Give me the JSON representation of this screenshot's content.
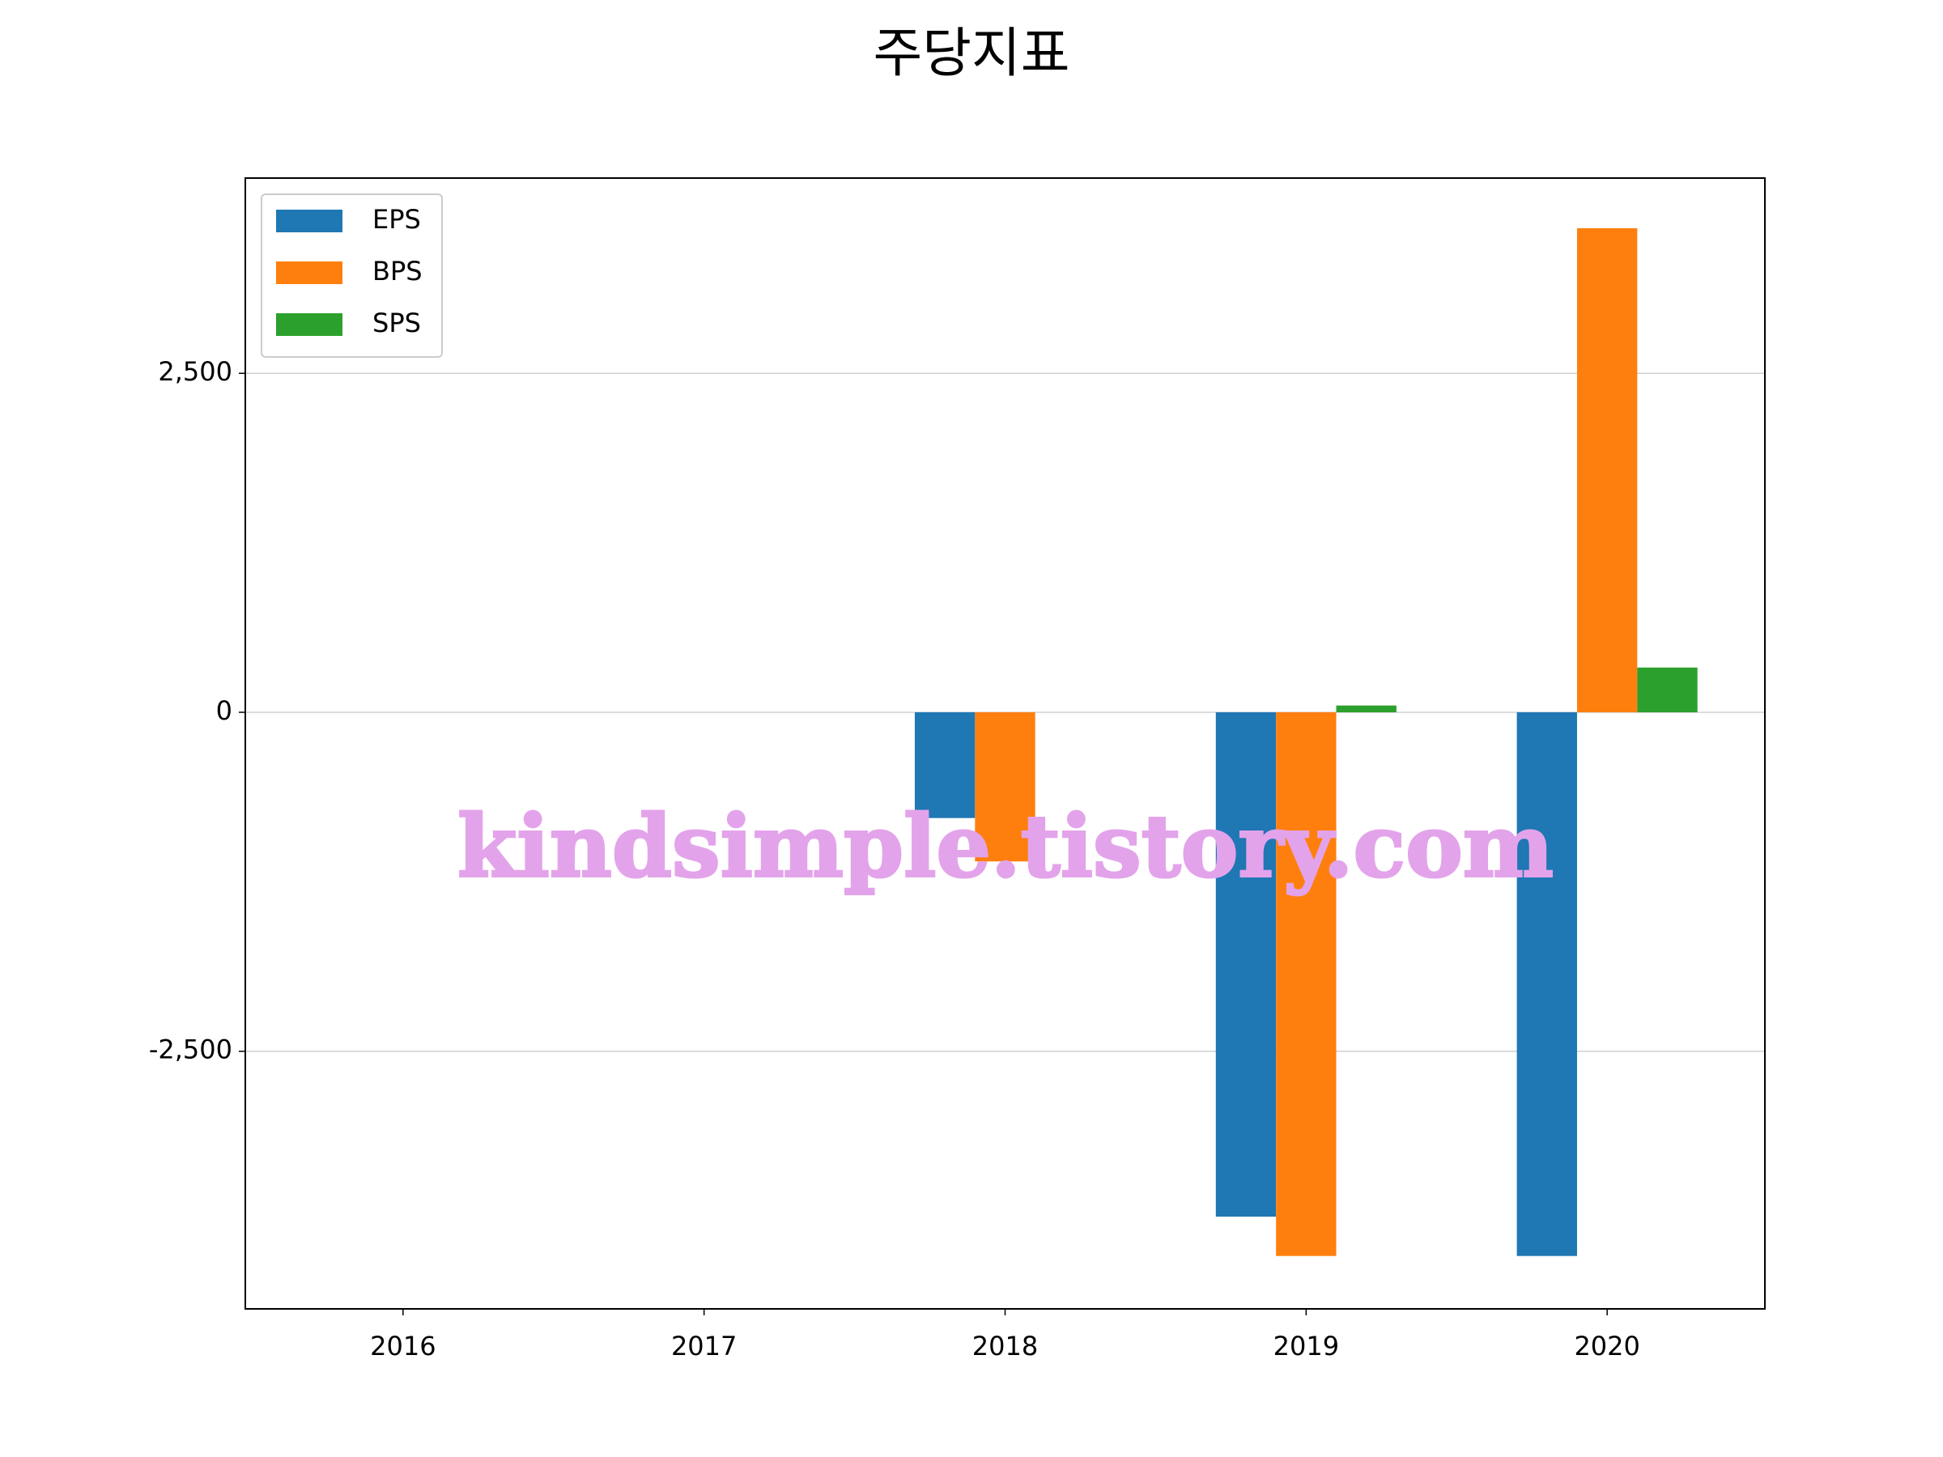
{
  "chart_data": {
    "type": "bar",
    "title": "주당지표",
    "categories": [
      "2016",
      "2017",
      "2018",
      "2019",
      "2020"
    ],
    "series": [
      {
        "name": "EPS",
        "color": "#1f77b4",
        "values": [
          null,
          null,
          -780,
          -3720,
          -4010
        ]
      },
      {
        "name": "BPS",
        "color": "#ff7f0e",
        "values": [
          null,
          null,
          -1100,
          -4010,
          3570
        ]
      },
      {
        "name": "SPS",
        "color": "#2ca02c",
        "values": [
          null,
          null,
          null,
          50,
          330
        ]
      }
    ],
    "ylim": [
      -4400,
      3940
    ],
    "yticks": [
      {
        "value": -2500,
        "label": "-2,500"
      },
      0,
      {
        "value": 2500,
        "label": "2,500"
      }
    ],
    "grid": true,
    "legend": "upper left",
    "watermark": "kindsimple.tistory.com"
  }
}
